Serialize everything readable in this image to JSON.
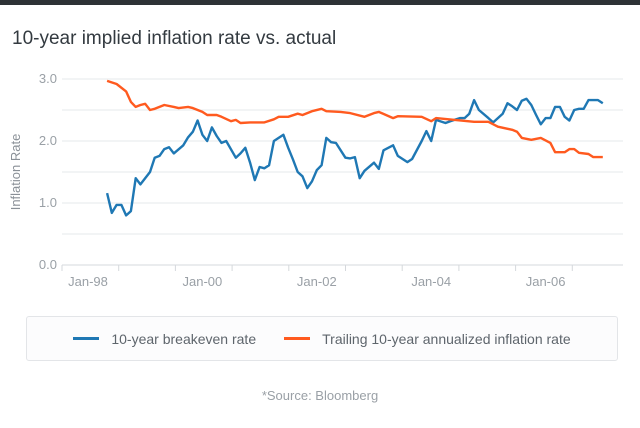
{
  "chart_data": {
    "type": "line",
    "title": "10-year implied inflation rate vs. actual",
    "ylabel": "Inflation Rate",
    "xlabel": "",
    "ylim": [
      0,
      3.0
    ],
    "yticks": [
      "0.0",
      "1.0",
      "2.0",
      "3.0"
    ],
    "ygrid_step": 0.5,
    "xticks": [
      {
        "label": "Jan-98",
        "date": "1998-01"
      },
      {
        "label": "Jan-00",
        "date": "2000-01"
      },
      {
        "label": "Jan-02",
        "date": "2002-01"
      },
      {
        "label": "Jan-04",
        "date": "2004-01"
      },
      {
        "label": "Jan-06",
        "date": "2006-01"
      }
    ],
    "grid": true,
    "legend_position": "bottom",
    "series": [
      {
        "name": "10-year breakeven rate",
        "color": "#1f78b4",
        "points": [
          [
            "1998-05",
            1.16
          ],
          [
            "1998-06",
            0.84
          ],
          [
            "1998-07",
            0.97
          ],
          [
            "1998-08",
            0.97
          ],
          [
            "1998-09",
            0.8
          ],
          [
            "1998-10",
            0.87
          ],
          [
            "1998-11",
            1.4
          ],
          [
            "1998-12",
            1.3
          ],
          [
            "1999-02",
            1.5
          ],
          [
            "1999-03",
            1.73
          ],
          [
            "1999-04",
            1.76
          ],
          [
            "1999-05",
            1.87
          ],
          [
            "1999-06",
            1.9
          ],
          [
            "1999-07",
            1.8
          ],
          [
            "1999-09",
            1.93
          ],
          [
            "1999-10",
            2.06
          ],
          [
            "1999-11",
            2.15
          ],
          [
            "1999-12",
            2.33
          ],
          [
            "2000-01",
            2.1
          ],
          [
            "2000-02",
            2.0
          ],
          [
            "2000-03",
            2.22
          ],
          [
            "2000-04",
            2.08
          ],
          [
            "2000-05",
            1.97
          ],
          [
            "2000-06",
            2.0
          ],
          [
            "2000-08",
            1.73
          ],
          [
            "2000-09",
            1.8
          ],
          [
            "2000-10",
            1.89
          ],
          [
            "2000-11",
            1.65
          ],
          [
            "2000-12",
            1.37
          ],
          [
            "2001-01",
            1.58
          ],
          [
            "2001-02",
            1.56
          ],
          [
            "2001-03",
            1.61
          ],
          [
            "2001-04",
            2.0
          ],
          [
            "2001-06",
            2.1
          ],
          [
            "2001-07",
            1.89
          ],
          [
            "2001-08",
            1.7
          ],
          [
            "2001-09",
            1.5
          ],
          [
            "2001-10",
            1.43
          ],
          [
            "2001-11",
            1.24
          ],
          [
            "2001-12",
            1.35
          ],
          [
            "2002-01",
            1.53
          ],
          [
            "2002-02",
            1.61
          ],
          [
            "2002-03",
            2.05
          ],
          [
            "2002-04",
            1.98
          ],
          [
            "2002-05",
            1.97
          ],
          [
            "2002-07",
            1.73
          ],
          [
            "2002-08",
            1.72
          ],
          [
            "2002-09",
            1.74
          ],
          [
            "2002-10",
            1.4
          ],
          [
            "2002-11",
            1.52
          ],
          [
            "2003-01",
            1.65
          ],
          [
            "2003-02",
            1.55
          ],
          [
            "2003-03",
            1.85
          ],
          [
            "2003-05",
            1.93
          ],
          [
            "2003-06",
            1.76
          ],
          [
            "2003-08",
            1.66
          ],
          [
            "2003-09",
            1.71
          ],
          [
            "2003-11",
            2.0
          ],
          [
            "2003-12",
            2.16
          ],
          [
            "2004-01",
            2.0
          ],
          [
            "2004-02",
            2.34
          ],
          [
            "2004-04",
            2.29
          ],
          [
            "2004-05",
            2.32
          ],
          [
            "2004-07",
            2.37
          ],
          [
            "2004-08",
            2.37
          ],
          [
            "2004-09",
            2.44
          ],
          [
            "2004-10",
            2.66
          ],
          [
            "2004-11",
            2.5
          ],
          [
            "2005-01",
            2.37
          ],
          [
            "2005-02",
            2.3
          ],
          [
            "2005-04",
            2.44
          ],
          [
            "2005-05",
            2.61
          ],
          [
            "2005-06",
            2.56
          ],
          [
            "2005-07",
            2.5
          ],
          [
            "2005-08",
            2.65
          ],
          [
            "2005-09",
            2.68
          ],
          [
            "2005-10",
            2.58
          ],
          [
            "2005-11",
            2.42
          ],
          [
            "2005-12",
            2.27
          ],
          [
            "2006-01",
            2.37
          ],
          [
            "2006-02",
            2.37
          ],
          [
            "2006-03",
            2.55
          ],
          [
            "2006-04",
            2.55
          ],
          [
            "2006-05",
            2.39
          ],
          [
            "2006-06",
            2.33
          ],
          [
            "2006-07",
            2.5
          ],
          [
            "2006-08",
            2.52
          ],
          [
            "2006-09",
            2.52
          ],
          [
            "2006-10",
            2.66
          ],
          [
            "2006-12",
            2.66
          ],
          [
            "2007-01",
            2.61
          ]
        ]
      },
      {
        "name": "Trailing 10-year annualized inflation rate",
        "color": "#ff5a1f",
        "points": [
          [
            "1998-05",
            2.97
          ],
          [
            "1998-07",
            2.92
          ],
          [
            "1998-09",
            2.8
          ],
          [
            "1998-10",
            2.63
          ],
          [
            "1998-11",
            2.55
          ],
          [
            "1998-12",
            2.58
          ],
          [
            "1999-01",
            2.6
          ],
          [
            "1999-02",
            2.5
          ],
          [
            "1999-03",
            2.52
          ],
          [
            "1999-05",
            2.58
          ],
          [
            "1999-07",
            2.55
          ],
          [
            "1999-08",
            2.53
          ],
          [
            "1999-10",
            2.55
          ],
          [
            "1999-11",
            2.53
          ],
          [
            "2000-01",
            2.47
          ],
          [
            "2000-02",
            2.42
          ],
          [
            "2000-04",
            2.42
          ],
          [
            "2000-05",
            2.39
          ],
          [
            "2000-07",
            2.32
          ],
          [
            "2000-08",
            2.34
          ],
          [
            "2000-09",
            2.29
          ],
          [
            "2000-11",
            2.3
          ],
          [
            "2001-02",
            2.3
          ],
          [
            "2001-04",
            2.35
          ],
          [
            "2001-05",
            2.39
          ],
          [
            "2001-07",
            2.39
          ],
          [
            "2001-09",
            2.44
          ],
          [
            "2001-10",
            2.42
          ],
          [
            "2001-12",
            2.48
          ],
          [
            "2002-02",
            2.52
          ],
          [
            "2002-03",
            2.48
          ],
          [
            "2002-06",
            2.47
          ],
          [
            "2002-08",
            2.45
          ],
          [
            "2002-11",
            2.39
          ],
          [
            "2003-01",
            2.45
          ],
          [
            "2003-02",
            2.47
          ],
          [
            "2003-05",
            2.37
          ],
          [
            "2003-06",
            2.4
          ],
          [
            "2003-11",
            2.39
          ],
          [
            "2004-01",
            2.32
          ],
          [
            "2004-02",
            2.37
          ],
          [
            "2004-06",
            2.34
          ],
          [
            "2004-10",
            2.31
          ],
          [
            "2005-01",
            2.31
          ],
          [
            "2005-03",
            2.23
          ],
          [
            "2005-06",
            2.18
          ],
          [
            "2005-07",
            2.15
          ],
          [
            "2005-08",
            2.05
          ],
          [
            "2005-10",
            2.02
          ],
          [
            "2005-12",
            2.05
          ],
          [
            "2006-02",
            1.97
          ],
          [
            "2006-03",
            1.82
          ],
          [
            "2006-05",
            1.82
          ],
          [
            "2006-06",
            1.87
          ],
          [
            "2006-07",
            1.87
          ],
          [
            "2006-08",
            1.81
          ],
          [
            "2006-10",
            1.79
          ],
          [
            "2006-11",
            1.74
          ],
          [
            "2007-01",
            1.74
          ]
        ]
      }
    ],
    "source": "*Source: Bloomberg"
  }
}
